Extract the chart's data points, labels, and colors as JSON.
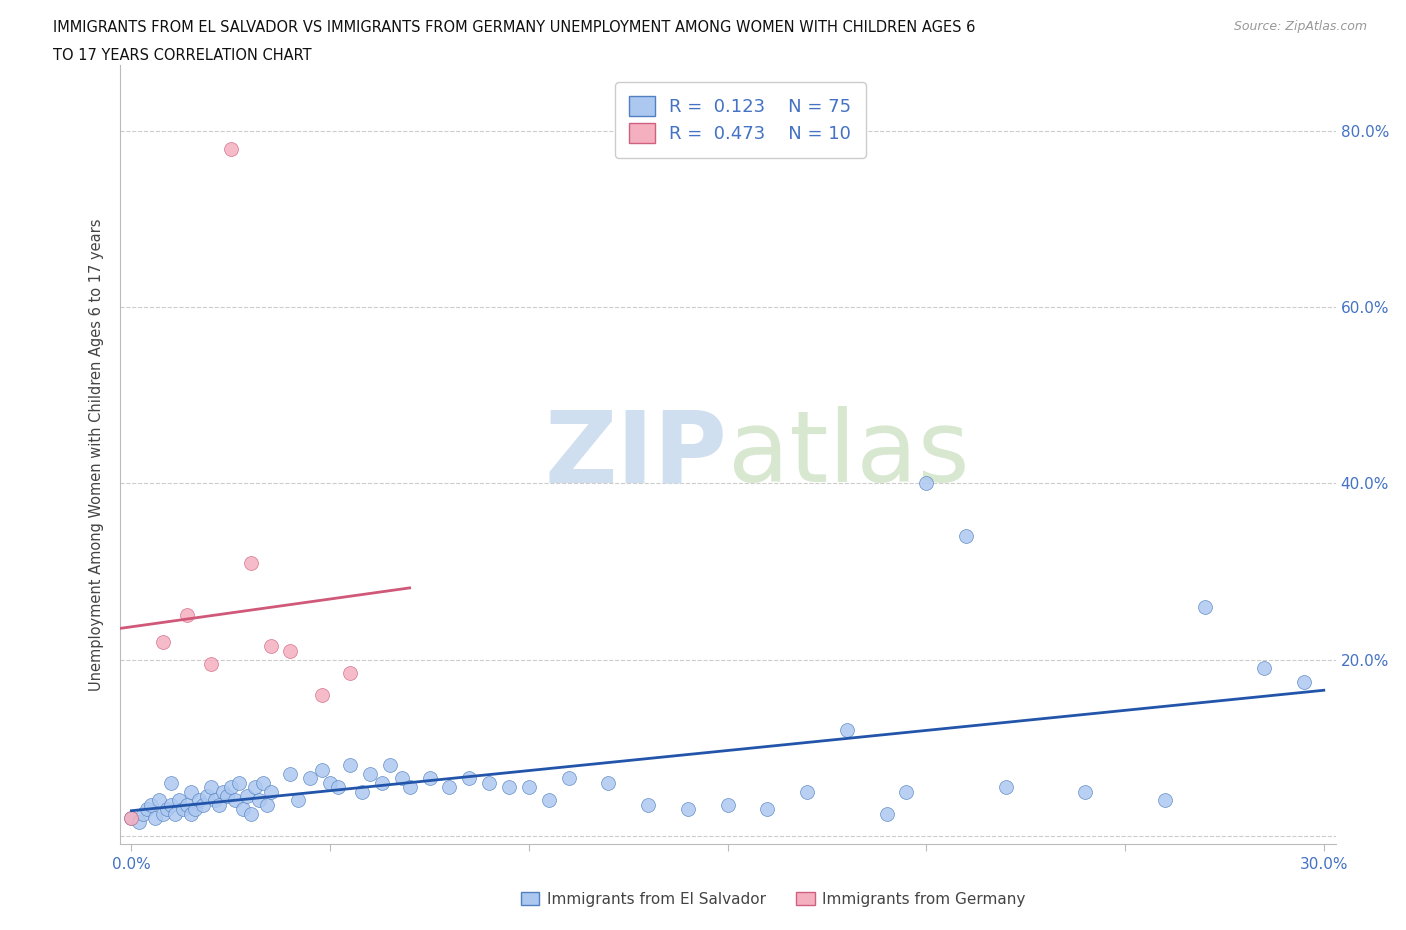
{
  "title_line1": "IMMIGRANTS FROM EL SALVADOR VS IMMIGRANTS FROM GERMANY UNEMPLOYMENT AMONG WOMEN WITH CHILDREN AGES 6",
  "title_line2": "TO 17 YEARS CORRELATION CHART",
  "source": "Source: ZipAtlas.com",
  "ylabel": "Unemployment Among Women with Children Ages 6 to 17 years",
  "xlim": [
    -0.003,
    0.303
  ],
  "ylim": [
    -0.01,
    0.875
  ],
  "ytick_vals": [
    0.0,
    0.2,
    0.4,
    0.6,
    0.8
  ],
  "xtick_vals": [
    0.0,
    0.05,
    0.1,
    0.15,
    0.2,
    0.25,
    0.3
  ],
  "el_salvador_R": 0.123,
  "el_salvador_N": 75,
  "germany_R": 0.473,
  "germany_N": 10,
  "es_dot_color": "#adc8f0",
  "es_edge_color": "#5080c0",
  "de_dot_color": "#f5b0c0",
  "de_edge_color": "#d06080",
  "es_line_color": "#2255aa",
  "de_line_color": "#d05878",
  "axis_color": "#4472c4",
  "watermark_zip": "ZIP",
  "watermark_atlas": "atlas",
  "watermark_color": "#d0dff0",
  "bg_color": "#ffffff",
  "grid_color": "#cccccc",
  "el_salvador_x": [
    0.0,
    0.002,
    0.003,
    0.004,
    0.005,
    0.006,
    0.007,
    0.008,
    0.009,
    0.01,
    0.01,
    0.011,
    0.012,
    0.013,
    0.014,
    0.015,
    0.015,
    0.016,
    0.017,
    0.018,
    0.019,
    0.02,
    0.021,
    0.022,
    0.023,
    0.024,
    0.025,
    0.026,
    0.027,
    0.028,
    0.029,
    0.03,
    0.031,
    0.032,
    0.033,
    0.034,
    0.035,
    0.04,
    0.042,
    0.045,
    0.048,
    0.05,
    0.052,
    0.055,
    0.058,
    0.06,
    0.063,
    0.065,
    0.068,
    0.07,
    0.075,
    0.08,
    0.085,
    0.09,
    0.095,
    0.1,
    0.105,
    0.11,
    0.12,
    0.13,
    0.14,
    0.15,
    0.16,
    0.17,
    0.18,
    0.19,
    0.195,
    0.2,
    0.21,
    0.22,
    0.24,
    0.26,
    0.27,
    0.285,
    0.295
  ],
  "el_salvador_y": [
    0.02,
    0.015,
    0.025,
    0.03,
    0.035,
    0.02,
    0.04,
    0.025,
    0.03,
    0.035,
    0.06,
    0.025,
    0.04,
    0.03,
    0.035,
    0.025,
    0.05,
    0.03,
    0.04,
    0.035,
    0.045,
    0.055,
    0.04,
    0.035,
    0.05,
    0.045,
    0.055,
    0.04,
    0.06,
    0.03,
    0.045,
    0.025,
    0.055,
    0.04,
    0.06,
    0.035,
    0.05,
    0.07,
    0.04,
    0.065,
    0.075,
    0.06,
    0.055,
    0.08,
    0.05,
    0.07,
    0.06,
    0.08,
    0.065,
    0.055,
    0.065,
    0.055,
    0.065,
    0.06,
    0.055,
    0.055,
    0.04,
    0.065,
    0.06,
    0.035,
    0.03,
    0.035,
    0.03,
    0.05,
    0.12,
    0.025,
    0.05,
    0.4,
    0.34,
    0.055,
    0.05,
    0.04,
    0.26,
    0.19,
    0.175
  ],
  "germany_x": [
    0.0,
    0.008,
    0.014,
    0.02,
    0.025,
    0.03,
    0.035,
    0.04,
    0.048,
    0.055
  ],
  "germany_y": [
    0.02,
    0.22,
    0.25,
    0.195,
    0.78,
    0.31,
    0.215,
    0.21,
    0.16,
    0.185
  ],
  "de_line_x0": -0.003,
  "de_line_x1": 0.07,
  "es_line_x0": 0.0,
  "es_line_x1": 0.3
}
